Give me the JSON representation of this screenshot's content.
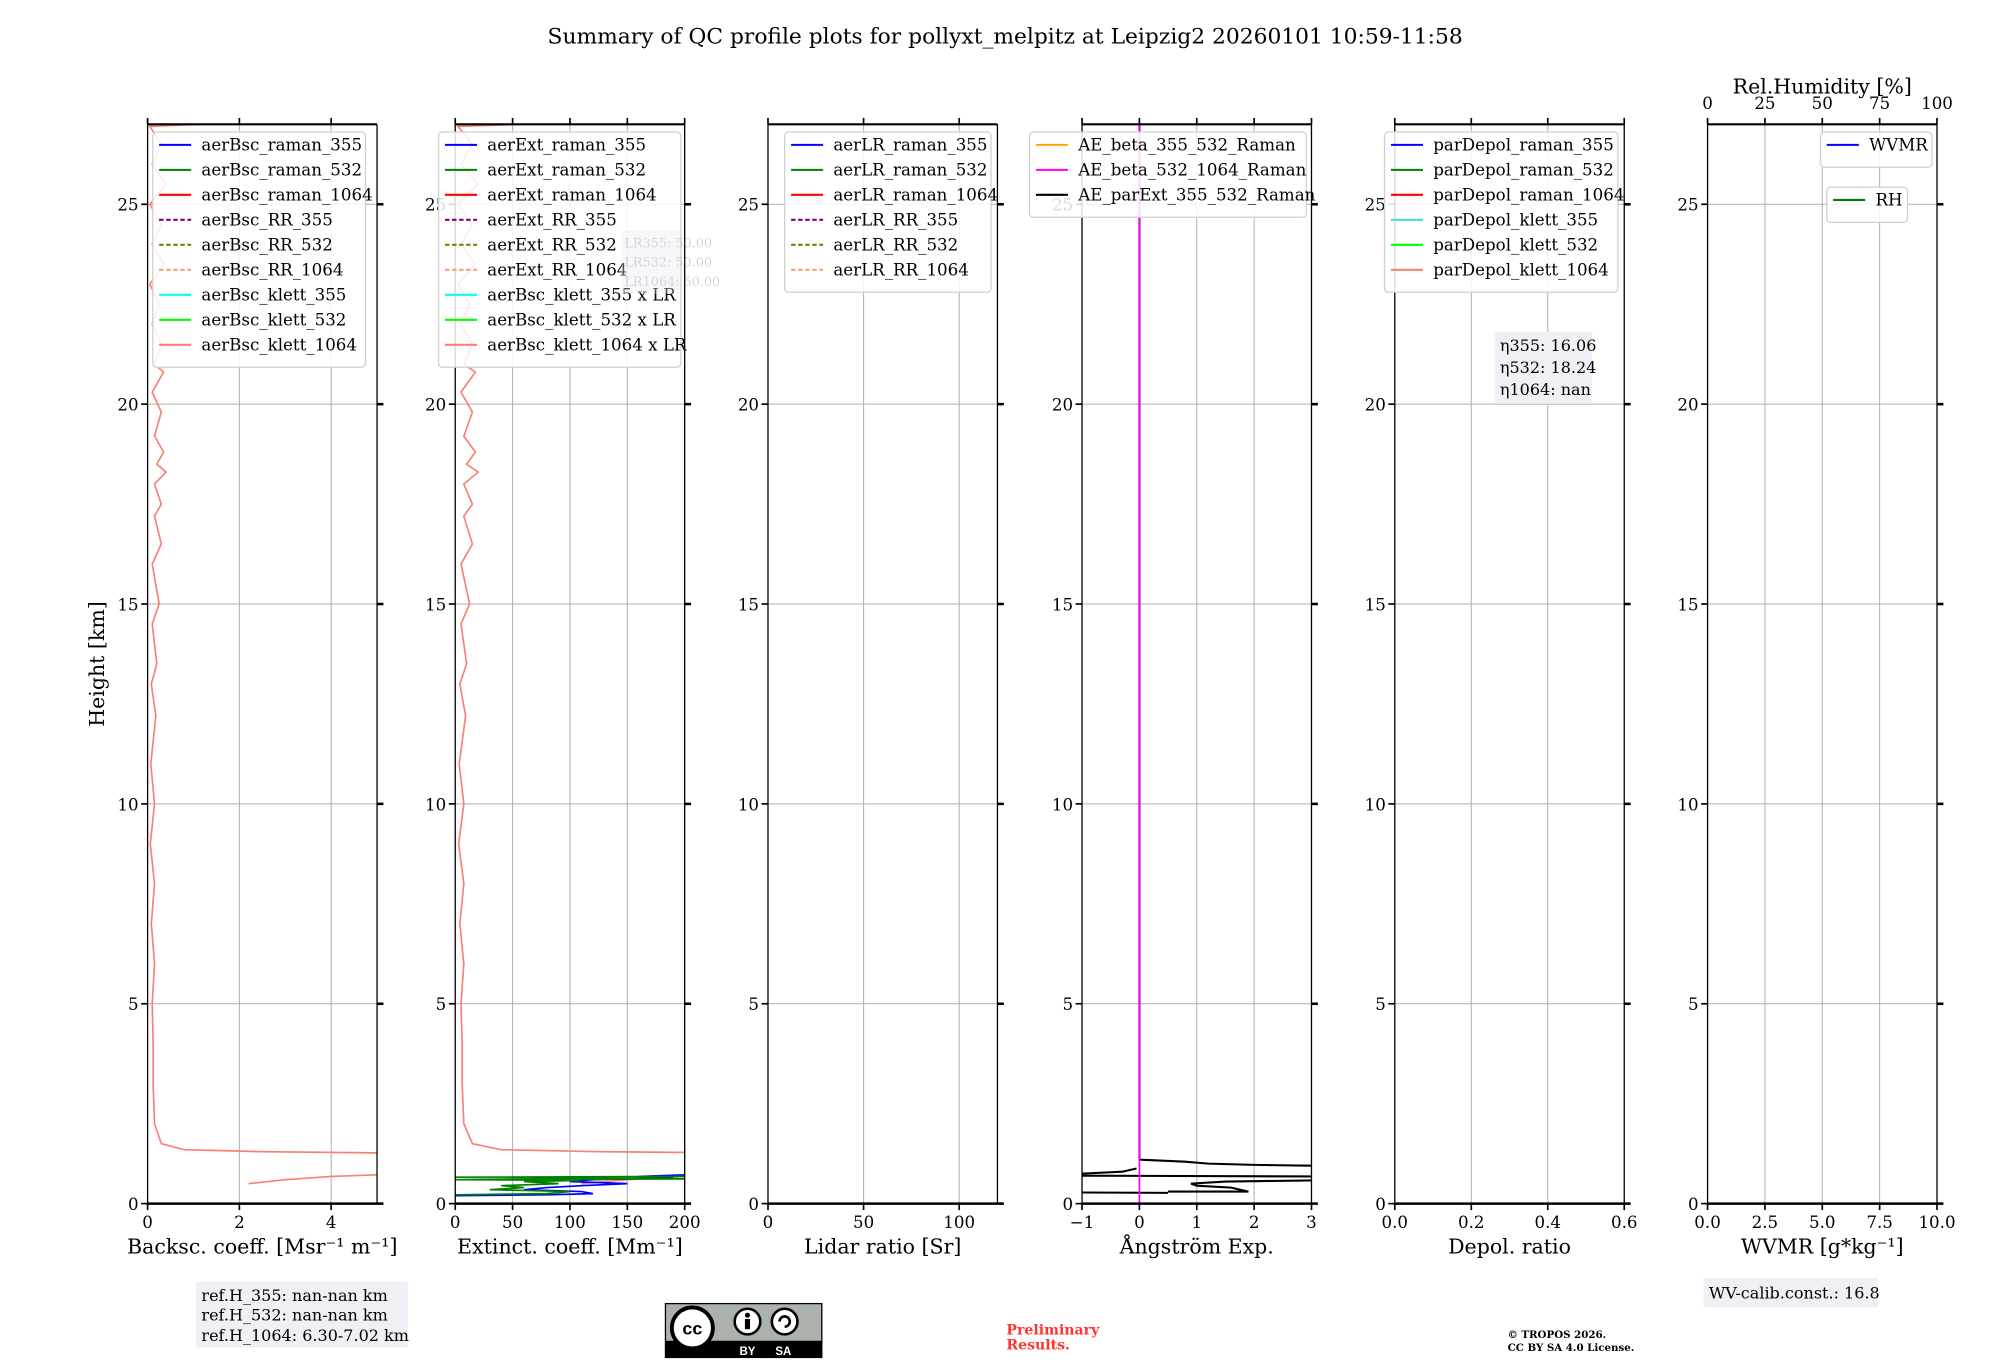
{
  "title": "Summary of QC profile plots for pollyxt_melpitz at Leipzig2 20260101 10:59-11:58",
  "ylabel": "Height [km]",
  "chart_data": {
    "type": "line",
    "ylim": [
      0,
      27
    ],
    "yticks": {
      "values": [
        0,
        5,
        10,
        15,
        20,
        25
      ],
      "labels": [
        "0",
        "5",
        "10",
        "15",
        "20",
        "25"
      ]
    },
    "grid": true,
    "panels": [
      {
        "xlabel": "Backsc. coeff. [Msr⁻¹ m⁻¹]",
        "xlim": [
          0,
          5
        ],
        "xticks": {
          "values": [
            0,
            2,
            4
          ],
          "labels": [
            "0",
            "2",
            "4"
          ]
        },
        "legend": [
          {
            "label": "aerBsc_raman_355",
            "color": "#0000ff",
            "dash": false
          },
          {
            "label": "aerBsc_raman_532",
            "color": "#008000",
            "dash": false
          },
          {
            "label": "aerBsc_raman_1064",
            "color": "#ff0000",
            "dash": false
          },
          {
            "label": "aerBsc_RR_355",
            "color": "#800080",
            "dash": true
          },
          {
            "label": "aerBsc_RR_532",
            "color": "#808000",
            "dash": true
          },
          {
            "label": "aerBsc_RR_1064",
            "color": "#ffa07a",
            "dash": true
          },
          {
            "label": "aerBsc_klett_355",
            "color": "#00ffff",
            "dash": false
          },
          {
            "label": "aerBsc_klett_532",
            "color": "#00ff00",
            "dash": false
          },
          {
            "label": "aerBsc_klett_1064",
            "color": "#fa8072",
            "dash": false
          }
        ],
        "series": [
          {
            "name": "aerBsc_klett_1064",
            "color": "#fa8072",
            "segments": [
              [
                [
                  1.1,
                  27.0
                ],
                [
                  0.05,
                  26.95
                ],
                [
                  0.3,
                  26.5
                ],
                [
                  0.1,
                  26
                ],
                [
                  0.4,
                  25.5
                ],
                [
                  0.05,
                  25
                ],
                [
                  0.3,
                  24.5
                ],
                [
                  0.1,
                  24
                ],
                [
                  0.35,
                  23.5
                ],
                [
                  0.05,
                  23
                ],
                [
                  0.25,
                  22.5
                ],
                [
                  0.1,
                  22
                ],
                [
                  0.3,
                  21.5
                ],
                [
                  0.15,
                  21
                ],
                [
                  0.35,
                  20.8
                ],
                [
                  0.1,
                  20.3
                ],
                [
                  0.3,
                  19.8
                ],
                [
                  0.15,
                  19.2
                ],
                [
                  0.35,
                  18.8
                ],
                [
                  0.2,
                  18.5
                ],
                [
                  0.4,
                  18.3
                ],
                [
                  0.15,
                  18
                ],
                [
                  0.3,
                  17.5
                ],
                [
                  0.15,
                  17.2
                ],
                [
                  0.3,
                  16.5
                ],
                [
                  0.1,
                  16
                ],
                [
                  0.25,
                  15
                ],
                [
                  0.1,
                  14.5
                ],
                [
                  0.2,
                  13.5
                ],
                [
                  0.08,
                  13
                ],
                [
                  0.18,
                  12.2
                ],
                [
                  0.07,
                  11
                ],
                [
                  0.15,
                  10
                ],
                [
                  0.06,
                  9
                ],
                [
                  0.15,
                  8
                ],
                [
                  0.08,
                  7
                ],
                [
                  0.15,
                  6
                ],
                [
                  0.1,
                  5
                ],
                [
                  0.12,
                  4
                ],
                [
                  0.12,
                  3
                ],
                [
                  0.15,
                  2
                ],
                [
                  0.3,
                  1.5
                ],
                [
                  0.8,
                  1.35
                ],
                [
                  2.5,
                  1.3
                ],
                [
                  5,
                  1.27
                ]
              ],
              [
                [
                  2.2,
                  0.5
                ],
                [
                  3,
                  0.6
                ],
                [
                  4,
                  0.68
                ],
                [
                  5,
                  0.72
                ]
              ]
            ]
          }
        ]
      },
      {
        "xlabel": "Extinct. coeff. [Mm⁻¹]",
        "xlim": [
          0,
          200
        ],
        "xticks": {
          "values": [
            0,
            50,
            100,
            150,
            200
          ],
          "labels": [
            "0",
            "50",
            "100",
            "150",
            "200"
          ]
        },
        "legend": [
          {
            "label": "aerExt_raman_355",
            "color": "#0000ff",
            "dash": false
          },
          {
            "label": "aerExt_raman_532",
            "color": "#008000",
            "dash": false
          },
          {
            "label": "aerExt_raman_1064",
            "color": "#ff0000",
            "dash": false
          },
          {
            "label": "aerExt_RR_355",
            "color": "#800080",
            "dash": true
          },
          {
            "label": "aerExt_RR_532",
            "color": "#808000",
            "dash": true
          },
          {
            "label": "aerExt_RR_1064",
            "color": "#ffa07a",
            "dash": true
          },
          {
            "label": "aerBsc_klett_355 x LR",
            "color": "#00ffff",
            "dash": false
          },
          {
            "label": "aerBsc_klett_532 x LR",
            "color": "#00ff00",
            "dash": false
          },
          {
            "label": "aerBsc_klett_1064 x LR",
            "color": "#fa8072",
            "dash": false
          }
        ],
        "lr_box": [
          "LR355: 50.00",
          "LR532: 50.00",
          "LR1064: 50.00"
        ],
        "series": [
          {
            "name": "aerBsc_klett_1064 x LR",
            "color": "#fa8072",
            "from_panel": 0,
            "factor": 50
          },
          {
            "name": "aerExt_raman_355",
            "color": "#0000ff",
            "segments": [
              [
                [
                  200,
                  0.72
                ],
                [
                  160,
                  0.68
                ],
                [
                  190,
                  0.65
                ],
                [
                  120,
                  0.6
                ],
                [
                  100,
                  0.55
                ],
                [
                  150,
                  0.5
                ],
                [
                  110,
                  0.45
                ],
                [
                  80,
                  0.4
                ],
                [
                  60,
                  0.35
                ],
                [
                  110,
                  0.3
                ],
                [
                  120,
                  0.25
                ],
                [
                  80,
                  0.22
                ],
                [
                  0,
                  0.2
                ]
              ]
            ]
          },
          {
            "name": "aerExt_raman_532",
            "color": "#008000",
            "segments": [
              [
                [
                  200,
                  0.68
                ],
                [
                  0,
                  0.66
                ],
                [
                  200,
                  0.62
                ],
                [
                  0,
                  0.6
                ],
                [
                  110,
                  0.58
                ],
                [
                  60,
                  0.55
                ],
                [
                  90,
                  0.5
                ],
                [
                  40,
                  0.45
                ],
                [
                  60,
                  0.4
                ],
                [
                  30,
                  0.35
                ],
                [
                  100,
                  0.3
                ],
                [
                  80,
                  0.25
                ],
                [
                  0,
                  0.22
                ]
              ]
            ]
          }
        ]
      },
      {
        "xlabel": "Lidar ratio [Sr]",
        "xlim": [
          0,
          120
        ],
        "xticks": {
          "values": [
            0,
            50,
            100
          ],
          "labels": [
            "0",
            "50",
            "100"
          ]
        },
        "legend": [
          {
            "label": "aerLR_raman_355",
            "color": "#0000ff",
            "dash": false
          },
          {
            "label": "aerLR_raman_532",
            "color": "#008000",
            "dash": false
          },
          {
            "label": "aerLR_raman_1064",
            "color": "#ff0000",
            "dash": false
          },
          {
            "label": "aerLR_RR_355",
            "color": "#800080",
            "dash": true
          },
          {
            "label": "aerLR_RR_532",
            "color": "#808000",
            "dash": true
          },
          {
            "label": "aerLR_RR_1064",
            "color": "#ffa07a",
            "dash": true
          }
        ],
        "series": []
      },
      {
        "xlabel": "Ångström Exp.",
        "xlim": [
          -1,
          3
        ],
        "xticks": {
          "values": [
            -1,
            0,
            1,
            2,
            3
          ],
          "labels": [
            "−1",
            "0",
            "1",
            "2",
            "3"
          ]
        },
        "legend": [
          {
            "label": "AE_beta_355_532_Raman",
            "color": "#ffa500",
            "dash": false
          },
          {
            "label": "AE_beta_532_1064_Raman",
            "color": "#ff00ff",
            "dash": false
          },
          {
            "label": "AE_parExt_355_532_Raman",
            "color": "#000000",
            "dash": false
          }
        ],
        "series": [
          {
            "name": "AE_parExt_355_532_Raman",
            "color": "#000000",
            "segments": [
              [
                [
                  0,
                  27
                ],
                [
                  0,
                  1.1
                ],
                [
                  0.8,
                  1.05
                ],
                [
                  1.2,
                  1.0
                ],
                [
                  2,
                  0.97
                ],
                [
                  3,
                  0.95
                ]
              ],
              [
                [
                  -1,
                  0.75
                ],
                [
                  -0.3,
                  0.8
                ],
                [
                  -0.05,
                  0.88
                ]
              ],
              [
                [
                  -1,
                  0.7
                ],
                [
                  3,
                  0.68
                ]
              ],
              [
                [
                  3,
                  0.58
                ],
                [
                  1.5,
                  0.55
                ],
                [
                  0.9,
                  0.5
                ],
                [
                  1.0,
                  0.45
                ],
                [
                  1.6,
                  0.4
                ],
                [
                  1.9,
                  0.3
                ],
                [
                  0.5,
                  0.3
                ]
              ],
              [
                [
                  -1,
                  0.28
                ],
                [
                  0.5,
                  0.27
                ]
              ]
            ]
          },
          {
            "name": "AE_beta_532_1064_Raman",
            "color": "#ff00ff",
            "segments": [
              [
                [
                  0,
                  27
                ],
                [
                  0,
                  0
                ]
              ]
            ]
          }
        ]
      },
      {
        "xlabel": "Depol. ratio",
        "xlim": [
          0,
          0.6
        ],
        "xticks": {
          "values": [
            0,
            0.2,
            0.4,
            0.6
          ],
          "labels": [
            "0.0",
            "0.2",
            "0.4",
            "0.6"
          ]
        },
        "legend": [
          {
            "label": "parDepol_raman_355",
            "color": "#0000ff",
            "dash": false
          },
          {
            "label": "parDepol_raman_532",
            "color": "#008000",
            "dash": false
          },
          {
            "label": "parDepol_raman_1064",
            "color": "#ff0000",
            "dash": false
          },
          {
            "label": "parDepol_klett_355",
            "color": "#40e0d0",
            "dash": false
          },
          {
            "label": "parDepol_klett_532",
            "color": "#00ff00",
            "dash": false
          },
          {
            "label": "parDepol_klett_1064",
            "color": "#fa8072",
            "dash": false
          }
        ],
        "eta_box": [
          "η355: 16.06",
          "η532: 18.24",
          "η1064: nan"
        ],
        "series": []
      },
      {
        "xlabel": "WVMR [g*kg⁻¹]",
        "xlim": [
          0,
          10
        ],
        "xticks": {
          "values": [
            0,
            2.5,
            5,
            7.5,
            10
          ],
          "labels": [
            "0.0",
            "2.5",
            "5.0",
            "7.5",
            "10.0"
          ]
        },
        "top_axis": {
          "label": "Rel.Humidity [%]",
          "xlim": [
            0,
            100
          ],
          "values": [
            0,
            25,
            50,
            75,
            100
          ],
          "labels": [
            "0",
            "25",
            "50",
            "75",
            "100"
          ]
        },
        "legend": [
          {
            "label": "WVMR",
            "color": "#0000ff",
            "dash": false
          }
        ],
        "legend2": [
          {
            "label": "RH",
            "color": "#008000",
            "dash": false
          }
        ],
        "series": []
      }
    ]
  },
  "annotations": {
    "ref_heights": [
      "ref.H_355: nan-nan km",
      "ref.H_532: nan-nan km",
      "ref.H_1064: 6.30-7.02 km"
    ],
    "wv_calib": "WV-calib.const.: 16.8",
    "preliminary": [
      "Preliminary",
      "Results."
    ],
    "copyright": [
      "© TROPOS 2026.",
      "CC BY SA 4.0 License."
    ],
    "license_logo": {
      "cc": "cc",
      "by": "BY",
      "sa": "SA"
    }
  }
}
